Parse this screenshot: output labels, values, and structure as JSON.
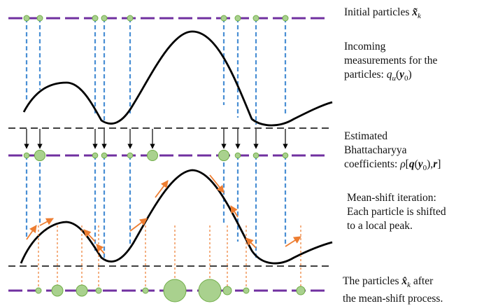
{
  "labels": {
    "initial_particles": {
      "text": "Initial particles ",
      "math": "x̃",
      "sub": "k"
    },
    "incoming": {
      "line1": "Incoming",
      "line2": "measurements for the",
      "line3": "particles: ",
      "math_q": "q",
      "math_u": "u",
      "math_y": "y",
      "math_0": "0"
    },
    "estimated": {
      "line1": "Estimated",
      "line2": "Bhattacharyya",
      "line3": "coefficients: ",
      "rho": "ρ",
      "q": "q",
      "y": "y",
      "zero": "0",
      "r": "r"
    },
    "meanshift": {
      "line1": "Mean-shift iteration:",
      "line2": "Each particle is shifted",
      "line3": "to a local peak."
    },
    "final": {
      "line1_prefix": "The particles ",
      "math": "x̂",
      "sub": "k",
      "line1_suffix": " after",
      "line2": "the mean-shift process."
    }
  },
  "colors": {
    "track": "#7030a0",
    "particle_fill": "#a9d18e",
    "particle_stroke": "#70ad47",
    "measurement": "#4a8fd4",
    "shift_arrow": "#ed7d31",
    "curve": "#000000",
    "separator": "#000000"
  },
  "particles": {
    "initial_weights": [
      1,
      1,
      1,
      1,
      1,
      1,
      1,
      1,
      1
    ],
    "coefficient_weights": [
      1,
      2,
      1,
      1,
      1,
      2,
      1,
      1,
      1
    ],
    "final_weights": [
      1,
      2,
      2,
      1,
      1,
      4,
      4,
      1.5,
      1,
      1.5
    ]
  }
}
